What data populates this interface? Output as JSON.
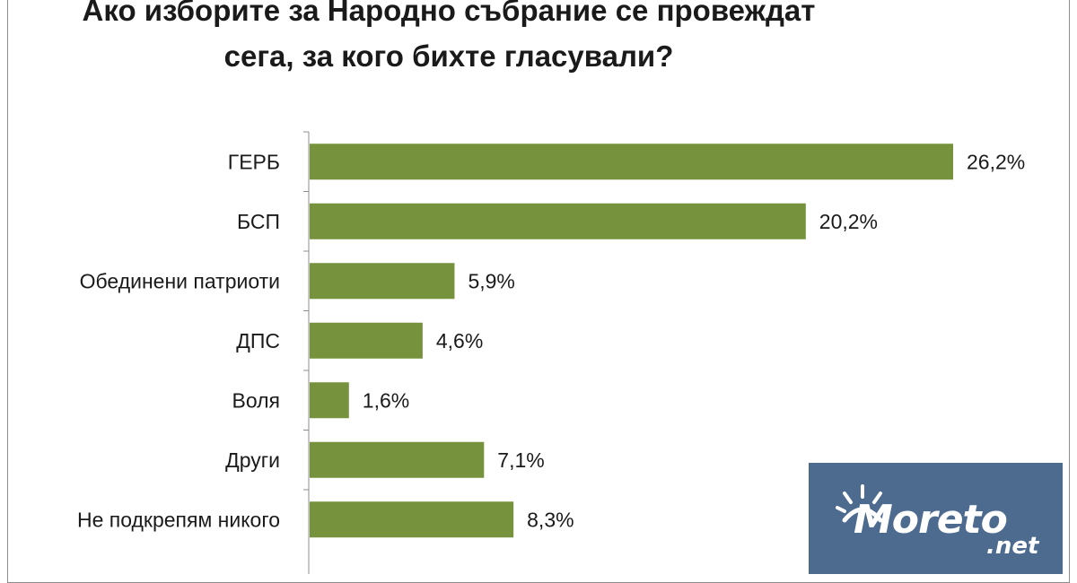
{
  "chart_data": {
    "type": "bar",
    "orientation": "horizontal",
    "title_lines": [
      "Ако изборите за Народно  събрание  се провеждат",
      "сега, за кого  бихте гласували?"
    ],
    "categories": [
      "ГЕРБ",
      "БСП",
      "Обединени патриоти",
      "ДПС",
      "Воля",
      "Други",
      "Не подкрепям никого"
    ],
    "values": [
      26.2,
      20.2,
      5.9,
      4.6,
      1.6,
      7.1,
      8.3
    ],
    "value_labels": [
      "26,2%",
      "20,2%",
      "5,9%",
      "4,6%",
      "1,6%",
      "7,1%",
      "8,3%"
    ],
    "bar_color": "#76923c",
    "grid": false,
    "legend": "none"
  },
  "watermark": {
    "brand": "Moreto",
    "suffix": ".net",
    "background": "#4d6a8f"
  }
}
